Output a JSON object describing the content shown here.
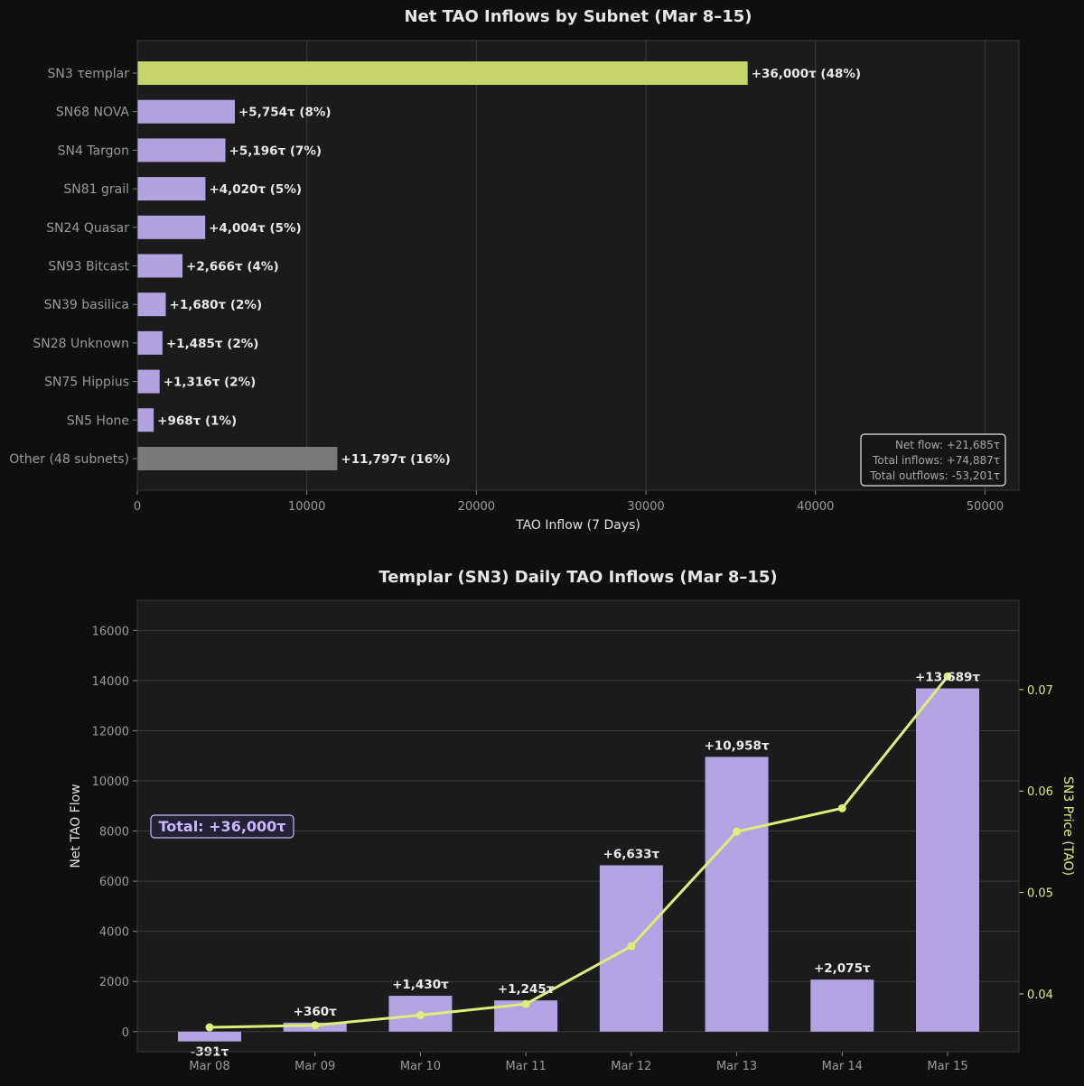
{
  "chart_data": [
    {
      "type": "bar",
      "orientation": "horizontal",
      "title": "Net TAO Inflows by Subnet (Mar 8–15)",
      "xlabel": "TAO Inflow (7 Days)",
      "ylabel": "",
      "xlim": [
        0,
        52000
      ],
      "xticks": [
        "0",
        "10000",
        "20000",
        "30000",
        "40000",
        "50000"
      ],
      "grid": "vertical",
      "categories": [
        "SN3 τemplar",
        "SN68 NOVA",
        "SN4 Targon",
        "SN81 grail",
        "SN24 Quasar",
        "SN93 Bitcast",
        "SN39 basilica",
        "SN28 Unknown",
        "SN75 Hippius",
        "SN5 Hone",
        "Other (48 subnets)"
      ],
      "values": [
        36000,
        5754,
        5196,
        4020,
        4004,
        2666,
        1680,
        1485,
        1316,
        968,
        11797
      ],
      "bar_labels": [
        "+36,000τ (48%)",
        "+5,754τ (8%)",
        "+5,196τ (7%)",
        "+4,020τ (5%)",
        "+4,004τ (5%)",
        "+2,666τ (4%)",
        "+1,680τ (2%)",
        "+1,485τ (2%)",
        "+1,316τ (2%)",
        "+968τ (1%)",
        "+11,797τ (16%)"
      ],
      "bar_colors": [
        "#c6d46a",
        "#b2a2e0",
        "#b2a2e0",
        "#b2a2e0",
        "#b2a2e0",
        "#b2a2e0",
        "#b2a2e0",
        "#b2a2e0",
        "#b2a2e0",
        "#b2a2e0",
        "#7a7a7a"
      ],
      "summary_box": {
        "position": "bottom-right",
        "lines": [
          "Net flow: +21,685τ",
          "Total inflows: +74,887τ",
          "Total outflows: -53,201τ"
        ]
      }
    },
    {
      "type": "bar",
      "title": "Templar (SN3) Daily TAO Inflows (Mar 8–15)",
      "xlabel": "",
      "ylabel": "Net TAO Flow",
      "y2label": "SN3 Price (TAO)",
      "ylim": [
        -800,
        17200
      ],
      "y2lim": [
        0.0343,
        0.0788
      ],
      "yticks": [
        "0",
        "2000",
        "4000",
        "6000",
        "8000",
        "10000",
        "12000",
        "14000",
        "16000"
      ],
      "y2ticks": [
        "0.04",
        "0.05",
        "0.06",
        "0.07"
      ],
      "grid": "horizontal",
      "categories": [
        "Mar 08",
        "Mar 09",
        "Mar 10",
        "Mar 11",
        "Mar 12",
        "Mar 13",
        "Mar 14",
        "Mar 15"
      ],
      "series": [
        {
          "name": "Net TAO Flow",
          "type": "bar",
          "axis": "left",
          "values": [
            -391,
            360,
            1430,
            1245,
            6633,
            10958,
            2075,
            13689
          ],
          "labels": [
            "-391τ",
            "+360τ",
            "+1,430τ",
            "+1,245τ",
            "+6,633τ",
            "+10,958τ",
            "+2,075τ",
            "+13,689τ"
          ]
        },
        {
          "name": "SN3 Price (TAO)",
          "type": "line",
          "axis": "right",
          "values": [
            0.0367,
            0.0369,
            0.0379,
            0.039,
            0.0447,
            0.056,
            0.0583,
            0.0713
          ]
        }
      ],
      "total_box": {
        "position": "middle-left",
        "text": "Total: +36,000τ"
      },
      "colors": {
        "bar": "#b3a3e2",
        "line": "#dcef78",
        "total_text": "#cbb8ff"
      }
    }
  ]
}
